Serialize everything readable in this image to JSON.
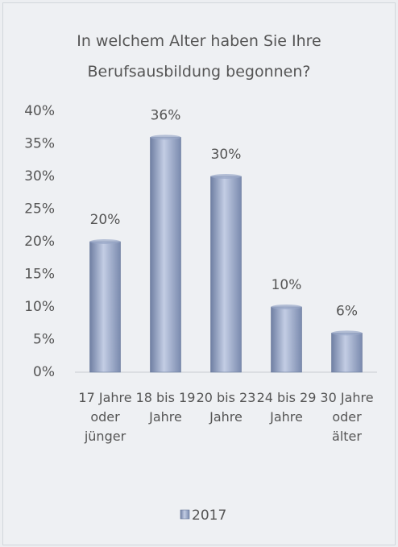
{
  "chart_data": {
    "type": "bar",
    "title": "In welchem Alter haben Sie Ihre Berufsausbildung begonnen?",
    "categories": [
      "17 Jahre oder jünger",
      "18 bis 19 Jahre",
      "20 bis 23 Jahre",
      "24 bis 29 Jahre",
      "30 Jahre oder älter"
    ],
    "series": [
      {
        "name": "2017",
        "color": "#9aa8c8",
        "values": [
          20,
          36,
          30,
          10,
          6
        ],
        "value_labels": [
          "20%",
          "36%",
          "30%",
          "10%",
          "6%"
        ]
      }
    ],
    "ylim": [
      0,
      40
    ],
    "yticks": [
      {
        "value": 0,
        "label": "0%"
      },
      {
        "value": 5,
        "label": "5%"
      },
      {
        "value": 10,
        "label": "10%"
      },
      {
        "value": 15,
        "label": "15%"
      },
      {
        "value": 20,
        "label": "20%"
      },
      {
        "value": 25,
        "label": "25%"
      },
      {
        "value": 30,
        "label": "30%"
      },
      {
        "value": 35,
        "label": "35%"
      },
      {
        "value": 40,
        "label": "40%"
      }
    ],
    "legend": "bottom"
  }
}
